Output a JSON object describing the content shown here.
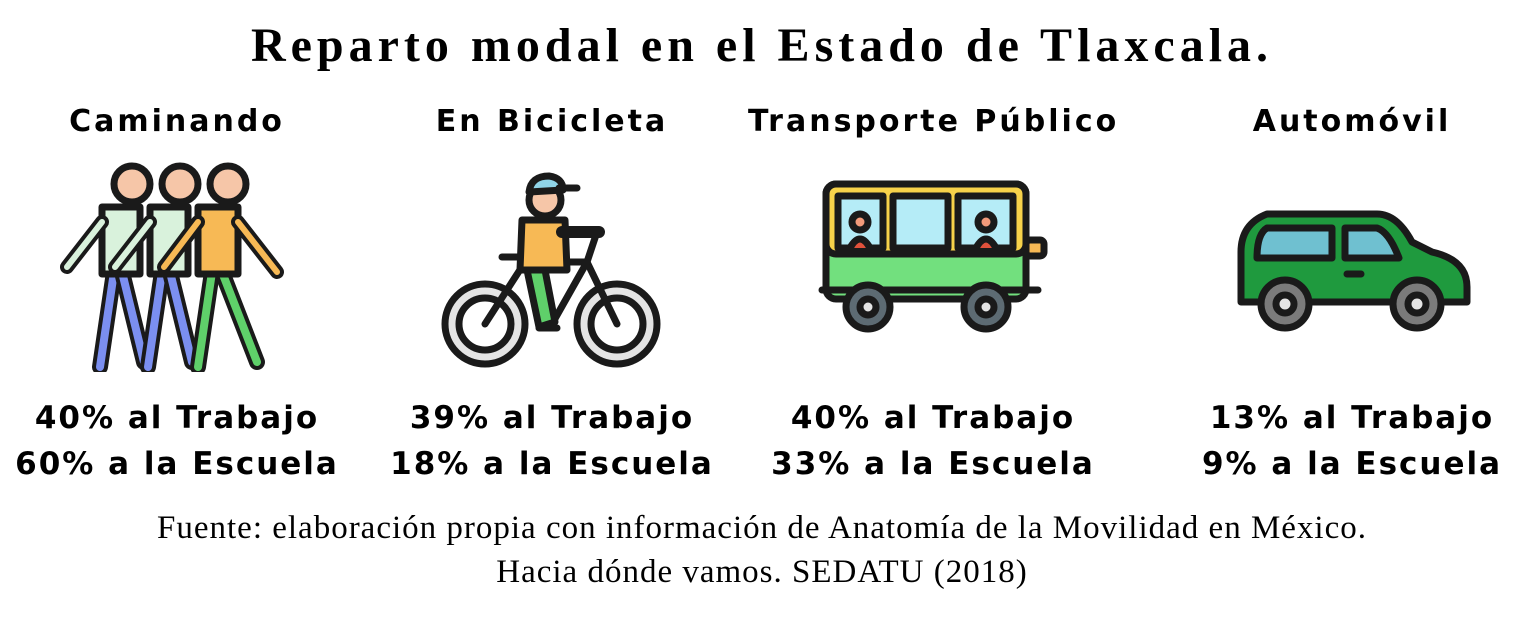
{
  "title": "Reparto modal en el Estado de Tlaxcala.",
  "modes": [
    {
      "label": "Caminando",
      "icon": "walking-people-icon",
      "work": "40% al Trabajo",
      "school": "60% a la Escuela"
    },
    {
      "label": "En Bicicleta",
      "icon": "bicycle-rider-icon",
      "work": "39% al Trabajo",
      "school": "18% a la Escuela"
    },
    {
      "label": "Transporte Público",
      "icon": "bus-icon",
      "work": "40% al Trabajo",
      "school": "33% a la Escuela"
    },
    {
      "label": "Automóvil",
      "icon": "car-icon",
      "work": "13% al Trabajo",
      "school": "9% a la Escuela"
    }
  ],
  "source": {
    "line1": "Fuente: elaboración propia con información de Anatomía de la Movilidad en México.",
    "line2": "Hacia dónde vamos. SEDATU (2018)"
  },
  "colors": {
    "outline": "#1a1a1a",
    "skin": "#f6c6a8",
    "shirt_light": "#d9f2dc",
    "shirt_orange": "#f7b955",
    "pants_blue": "#7b8ff0",
    "pants_green": "#5fd06a",
    "cap_blue": "#8fd4e8",
    "bus_yellow": "#f7d24a",
    "bus_green": "#72e07e",
    "window_blue": "#b5ecf7",
    "car_green": "#1f9a3e",
    "car_window": "#6fc0d0",
    "wheel_grey": "#7b7b7b"
  }
}
